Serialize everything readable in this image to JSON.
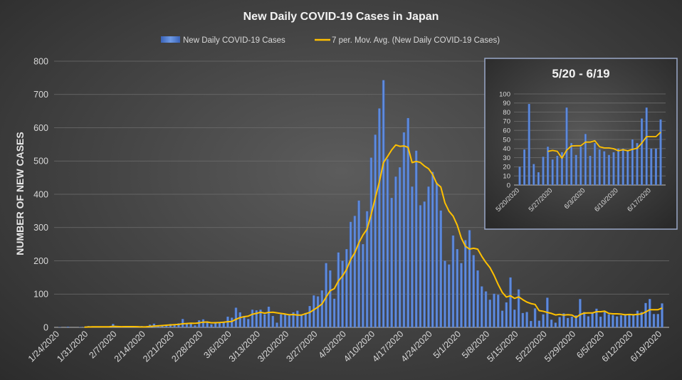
{
  "chart_data": [
    {
      "type": "bar",
      "title": "New Daily COVID-19 Cases in Japan",
      "ylabel": "NUMBER OF NEW CASES",
      "xlabel": "",
      "ylim": [
        0,
        800
      ],
      "yticks": [
        0,
        100,
        200,
        300,
        400,
        500,
        600,
        700,
        800
      ],
      "grid": true,
      "legend": "top",
      "xtick_labels": [
        "1/24/2020",
        "1/31/2020",
        "2/7/2020",
        "2/14/2020",
        "2/21/2020",
        "2/28/2020",
        "3/6/2020",
        "3/13/2020",
        "3/20/2020",
        "3/27/2020",
        "4/3/2020",
        "4/10/2020",
        "4/17/2020",
        "4/24/2020",
        "5/1/2020",
        "5/8/2020",
        "5/15/2020",
        "5/22/2020",
        "5/29/2020",
        "6/5/2020",
        "6/12/2020",
        "6/19/2020"
      ],
      "x": [
        "1/24",
        "1/25",
        "1/26",
        "1/27",
        "1/28",
        "1/29",
        "1/30",
        "1/31",
        "2/1",
        "2/2",
        "2/3",
        "2/4",
        "2/5",
        "2/6",
        "2/7",
        "2/8",
        "2/9",
        "2/10",
        "2/11",
        "2/12",
        "2/13",
        "2/14",
        "2/15",
        "2/16",
        "2/17",
        "2/18",
        "2/19",
        "2/20",
        "2/21",
        "2/22",
        "2/23",
        "2/24",
        "2/25",
        "2/26",
        "2/27",
        "2/28",
        "2/29",
        "3/1",
        "3/2",
        "3/3",
        "3/4",
        "3/5",
        "3/6",
        "3/7",
        "3/8",
        "3/9",
        "3/10",
        "3/11",
        "3/12",
        "3/13",
        "3/14",
        "3/15",
        "3/16",
        "3/17",
        "3/18",
        "3/19",
        "3/20",
        "3/21",
        "3/22",
        "3/23",
        "3/24",
        "3/25",
        "3/26",
        "3/27",
        "3/28",
        "3/29",
        "3/30",
        "3/31",
        "4/1",
        "4/2",
        "4/3",
        "4/4",
        "4/5",
        "4/6",
        "4/7",
        "4/8",
        "4/9",
        "4/10",
        "4/11",
        "4/12",
        "4/13",
        "4/14",
        "4/15",
        "4/16",
        "4/17",
        "4/18",
        "4/19",
        "4/20",
        "4/21",
        "4/22",
        "4/23",
        "4/24",
        "4/25",
        "4/26",
        "4/27",
        "4/28",
        "4/29",
        "4/30",
        "5/1",
        "5/2",
        "5/3",
        "5/4",
        "5/5",
        "5/6",
        "5/7",
        "5/8",
        "5/9",
        "5/10",
        "5/11",
        "5/12",
        "5/13",
        "5/14",
        "5/15",
        "5/16",
        "5/17",
        "5/18",
        "5/19",
        "5/20",
        "5/21",
        "5/22",
        "5/23",
        "5/24",
        "5/25",
        "5/26",
        "5/27",
        "5/28",
        "5/29",
        "5/30",
        "5/31",
        "6/1",
        "6/2",
        "6/3",
        "6/4",
        "6/5",
        "6/6",
        "6/7",
        "6/8",
        "6/9",
        "6/10",
        "6/11",
        "6/12",
        "6/13",
        "6/14",
        "6/15",
        "6/16",
        "6/17",
        "6/18",
        "6/19"
      ],
      "series": [
        {
          "name": "New Daily COVID-19 Cases",
          "type": "bar",
          "color": "#4472c4",
          "values": [
            1,
            0,
            2,
            0,
            0,
            1,
            1,
            4,
            3,
            2,
            0,
            0,
            2,
            10,
            0,
            0,
            3,
            0,
            0,
            0,
            4,
            3,
            8,
            11,
            5,
            6,
            8,
            10,
            9,
            12,
            25,
            11,
            11,
            6,
            21,
            24,
            14,
            9,
            13,
            13,
            14,
            32,
            29,
            59,
            45,
            32,
            25,
            53,
            51,
            53,
            39,
            62,
            34,
            14,
            39,
            39,
            36,
            45,
            50,
            36,
            43,
            64,
            96,
            93,
            111,
            193,
            171,
            86,
            225,
            200,
            235,
            317,
            335,
            381,
            250,
            349,
            510,
            579,
            658,
            743,
            506,
            389,
            453,
            481,
            586,
            629,
            423,
            531,
            367,
            378,
            423,
            467,
            435,
            351,
            200,
            189,
            276,
            235,
            193,
            262,
            292,
            217,
            171,
            123,
            108,
            83,
            101,
            98,
            50,
            75,
            150,
            53,
            114,
            43,
            46,
            19,
            57,
            20,
            39,
            89,
            23,
            14,
            31,
            42,
            28,
            32,
            36,
            85,
            46,
            33,
            42,
            56,
            32,
            46,
            39,
            37,
            33,
            36,
            40,
            40,
            38,
            50,
            46,
            73,
            85,
            40,
            40,
            72
          ]
        },
        {
          "name": "7 per. Mov. Avg. (New Daily COVID-19 Cases)",
          "type": "moving-average",
          "period": 7,
          "color": "#ffc000"
        }
      ]
    },
    {
      "type": "bar",
      "title": "5/20 - 6/19",
      "ylim": [
        0,
        100
      ],
      "yticks": [
        0,
        10,
        20,
        30,
        40,
        50,
        60,
        70,
        80,
        90,
        100
      ],
      "grid": true,
      "xtick_labels": [
        "5/20/2020",
        "5/27/2020",
        "6/3/2020",
        "6/10/2020",
        "6/17/2020"
      ],
      "x": [
        "5/20",
        "5/21",
        "5/22",
        "5/23",
        "5/24",
        "5/25",
        "5/26",
        "5/27",
        "5/28",
        "5/29",
        "5/30",
        "5/31",
        "6/1",
        "6/2",
        "6/3",
        "6/4",
        "6/5",
        "6/6",
        "6/7",
        "6/8",
        "6/9",
        "6/10",
        "6/11",
        "6/12",
        "6/13",
        "6/14",
        "6/15",
        "6/16",
        "6/17",
        "6/18",
        "6/19"
      ],
      "series": [
        {
          "type": "bar",
          "color": "#4472c4",
          "values": [
            20,
            39,
            89,
            23,
            14,
            31,
            42,
            28,
            32,
            36,
            85,
            46,
            33,
            42,
            56,
            32,
            46,
            39,
            37,
            33,
            36,
            40,
            40,
            38,
            50,
            46,
            73,
            85,
            40,
            40,
            72
          ]
        },
        {
          "type": "moving-average",
          "period": 7,
          "color": "#ffc000"
        }
      ]
    }
  ]
}
